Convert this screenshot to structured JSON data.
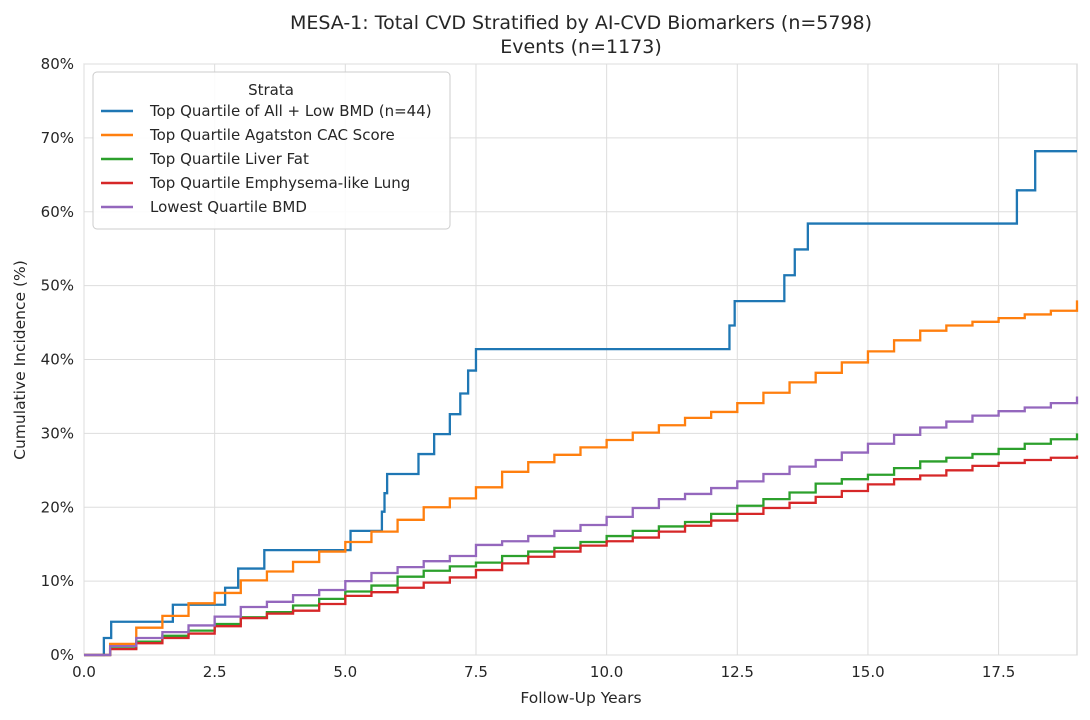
{
  "chart_data": {
    "type": "line",
    "step": true,
    "title_line1": "MESA-1: Total CVD Stratified by AI-CVD Biomarkers (n=5798)",
    "title_line2": "Events (n=1173)",
    "xlabel": "Follow-Up Years",
    "ylabel": "Cumulative Incidence (%)",
    "xlim": [
      0,
      19
    ],
    "ylim": [
      0,
      80
    ],
    "x_ticks": [
      0,
      2.5,
      5,
      7.5,
      10,
      12.5,
      15,
      17.5
    ],
    "x_tick_labels": [
      "0.0",
      "2.5",
      "5.0",
      "7.5",
      "10.0",
      "12.5",
      "15.0",
      "17.5"
    ],
    "y_ticks": [
      0,
      10,
      20,
      30,
      40,
      50,
      60,
      70,
      80
    ],
    "y_tick_labels": [
      "0%",
      "10%",
      "20%",
      "30%",
      "40%",
      "50%",
      "60%",
      "70%",
      "80%"
    ],
    "grid": true,
    "legend": {
      "title": "Strata",
      "position": "top-left"
    },
    "series": [
      {
        "name": "Top Quartile of All + Low BMD (n=44)",
        "color": "#1f77b4",
        "x": [
          0,
          0.38,
          0.45,
          0.52,
          1.7,
          2.7,
          2.95,
          3.45,
          5.1,
          5.7,
          5.75,
          5.8,
          6.4,
          6.7,
          7.0,
          7.2,
          7.35,
          7.5,
          12.35,
          12.45,
          13.4,
          13.6,
          13.85,
          17.85,
          18.2,
          19.0
        ],
        "y": [
          0,
          2.3,
          2.3,
          4.5,
          6.8,
          9.1,
          11.7,
          14.2,
          16.8,
          19.4,
          21.9,
          24.5,
          27.2,
          29.9,
          32.6,
          35.4,
          38.5,
          41.4,
          44.6,
          47.9,
          51.4,
          54.9,
          58.4,
          62.9,
          68.2,
          68.2
        ]
      },
      {
        "name": "Top Quartile Agatston CAC Score",
        "color": "#ff7f0e",
        "x": [
          0,
          0.5,
          1,
          1.5,
          2,
          2.5,
          3,
          3.5,
          4,
          4.5,
          5,
          5.5,
          6,
          6.5,
          7,
          7.5,
          8,
          8.5,
          9,
          9.5,
          10,
          10.5,
          11,
          11.5,
          12,
          12.5,
          13,
          13.5,
          14,
          14.5,
          15,
          15.5,
          16,
          16.5,
          17,
          17.5,
          18,
          18.5,
          19
        ],
        "y": [
          0,
          1.5,
          3.7,
          5.3,
          7.0,
          8.4,
          10.1,
          11.3,
          12.6,
          14.0,
          15.3,
          16.7,
          18.3,
          20.0,
          21.2,
          22.7,
          24.8,
          26.1,
          27.1,
          28.1,
          29.1,
          30.1,
          31.1,
          32.1,
          32.9,
          34.1,
          35.5,
          36.9,
          38.2,
          39.6,
          41.1,
          42.6,
          43.9,
          44.6,
          45.1,
          45.6,
          46.1,
          46.6,
          48.0
        ]
      },
      {
        "name": "Top Quartile Liver Fat",
        "color": "#2ca02c",
        "x": [
          0,
          0.5,
          1,
          1.5,
          2,
          2.5,
          3,
          3.5,
          4,
          4.5,
          5,
          5.5,
          6,
          6.5,
          7,
          7.5,
          8,
          8.5,
          9,
          9.5,
          10,
          10.5,
          11,
          11.5,
          12,
          12.5,
          13,
          13.5,
          14,
          14.5,
          15,
          15.5,
          16,
          16.5,
          17,
          17.5,
          18,
          18.5,
          19
        ],
        "y": [
          0,
          0.9,
          1.8,
          2.6,
          3.3,
          4.2,
          5.1,
          5.8,
          6.7,
          7.6,
          8.6,
          9.4,
          10.6,
          11.4,
          12.0,
          12.5,
          13.4,
          14.0,
          14.5,
          15.3,
          16.1,
          16.8,
          17.4,
          18.0,
          19.1,
          20.2,
          21.1,
          22.0,
          23.2,
          23.8,
          24.4,
          25.3,
          26.2,
          26.7,
          27.2,
          27.9,
          28.6,
          29.2,
          30.0
        ]
      },
      {
        "name": "Top Quartile Emphysema-like Lung",
        "color": "#d62728",
        "x": [
          0,
          0.5,
          1,
          1.5,
          2,
          2.5,
          3,
          3.5,
          4,
          4.5,
          5,
          5.5,
          6,
          6.5,
          7,
          7.5,
          8,
          8.5,
          9,
          9.5,
          10,
          10.5,
          11,
          11.5,
          12,
          12.5,
          13,
          13.5,
          14,
          14.5,
          15,
          15.5,
          16,
          16.5,
          17,
          17.5,
          18,
          18.5,
          19
        ],
        "y": [
          0,
          0.8,
          1.6,
          2.3,
          2.9,
          3.9,
          5.0,
          5.6,
          6.0,
          6.9,
          8.0,
          8.5,
          9.1,
          9.8,
          10.5,
          11.5,
          12.4,
          13.3,
          14.0,
          14.8,
          15.4,
          15.9,
          16.7,
          17.5,
          18.2,
          19.1,
          19.9,
          20.6,
          21.4,
          22.2,
          23.1,
          23.8,
          24.3,
          25.0,
          25.6,
          26.0,
          26.4,
          26.7,
          27.0
        ]
      },
      {
        "name": "Lowest Quartile BMD",
        "color": "#9467bd",
        "x": [
          0,
          0.5,
          1,
          1.5,
          2,
          2.5,
          3,
          3.5,
          4,
          4.5,
          5,
          5.5,
          6,
          6.5,
          7,
          7.5,
          8,
          8.5,
          9,
          9.5,
          10,
          10.5,
          11,
          11.5,
          12,
          12.5,
          13,
          13.5,
          14,
          14.5,
          15,
          15.5,
          16,
          16.5,
          17,
          17.5,
          18,
          18.5,
          19
        ],
        "y": [
          0,
          1.2,
          2.3,
          3.1,
          4.0,
          5.2,
          6.5,
          7.2,
          8.1,
          8.8,
          10.0,
          11.1,
          11.9,
          12.7,
          13.4,
          14.9,
          15.4,
          16.1,
          16.8,
          17.6,
          18.7,
          19.9,
          21.1,
          21.8,
          22.6,
          23.5,
          24.5,
          25.5,
          26.4,
          27.4,
          28.6,
          29.8,
          30.8,
          31.6,
          32.4,
          33.0,
          33.5,
          34.1,
          35.0
        ]
      }
    ]
  }
}
